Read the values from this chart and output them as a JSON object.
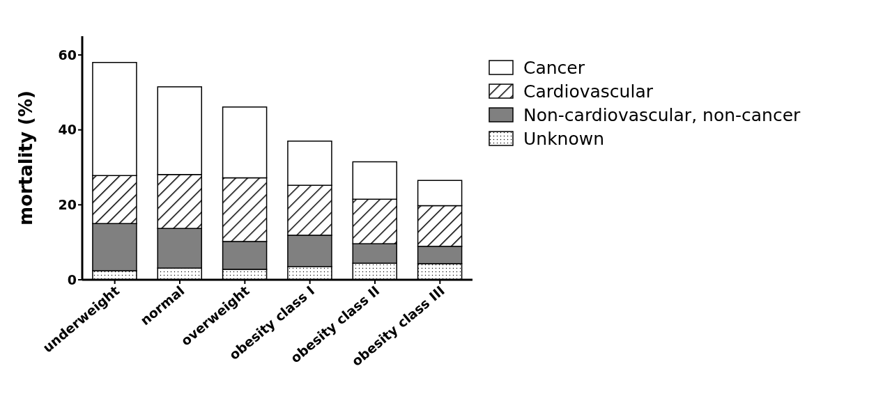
{
  "chart_data": {
    "type": "bar",
    "ylabel": "mortality (%)",
    "categories": [
      "underweight",
      "normal",
      "overweight",
      "obesity class I",
      "obesity class II",
      "obesity class III"
    ],
    "stacked": true,
    "series": [
      {
        "name": "Unknown",
        "color": "#000000",
        "values": [
          2.4,
          3.1,
          2.8,
          3.5,
          4.4,
          4.3
        ]
      },
      {
        "name": "Non-cardiovascular, non-cancer",
        "color": "#808080",
        "values": [
          12.6,
          10.6,
          7.4,
          8.4,
          5.2,
          4.6
        ]
      },
      {
        "name": "Cardiovascular",
        "color": "#000000",
        "values": [
          12.8,
          14.4,
          17.0,
          13.3,
          11.9,
          10.9
        ]
      },
      {
        "name": "Cancer",
        "color": "#ffffff",
        "values": [
          30.2,
          23.4,
          18.9,
          11.8,
          10.0,
          6.7
        ]
      }
    ],
    "ylim": [
      0,
      65
    ],
    "yticks": [
      0,
      20,
      40,
      60
    ],
    "grid": false,
    "legend": "top right"
  }
}
